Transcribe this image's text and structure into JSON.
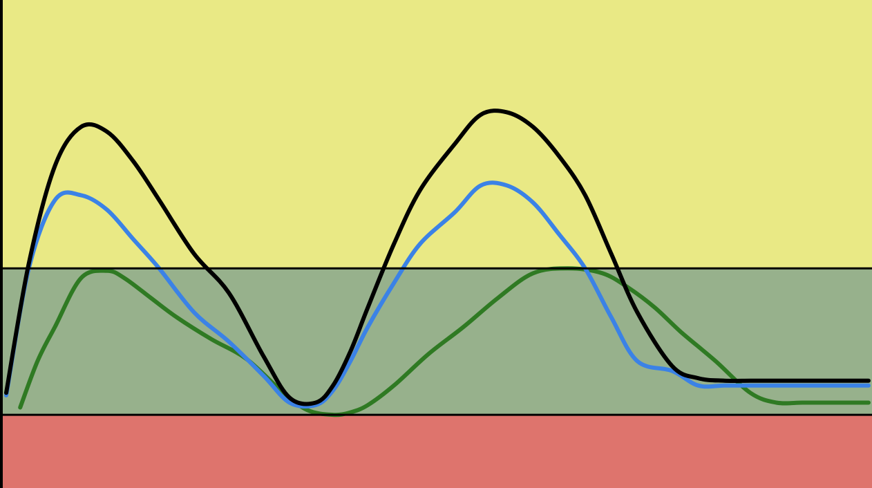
{
  "chart_data": {
    "type": "line",
    "title": "",
    "xlabel": "",
    "ylabel": "",
    "grid": false,
    "legend": "none",
    "xlim": [
      0,
      100
    ],
    "ylim": [
      0,
      100
    ],
    "bands": [
      {
        "name": "upper-band",
        "from": 45,
        "to": 100,
        "color": "#e9e985"
      },
      {
        "name": "middle-band",
        "from": 15,
        "to": 45,
        "color": "#97b18c"
      },
      {
        "name": "lower-band",
        "from": 0,
        "to": 15,
        "color": "#de746d"
      }
    ],
    "thresholds": [
      45,
      15
    ],
    "series": [
      {
        "color": "#000000",
        "x": [
          0.4,
          3,
          6,
          9,
          12,
          15,
          18,
          22,
          26,
          30,
          33,
          36,
          38,
          40,
          42,
          45,
          48,
          52,
          55,
          58,
          61,
          64,
          67,
          70,
          73,
          77,
          80,
          83,
          86,
          89,
          92,
          95,
          97,
          98,
          99,
          99.6
        ],
        "y": [
          19.5,
          46,
          66,
          74,
          73,
          67,
          59,
          48,
          40,
          27,
          18.5,
          17.5,
          21,
          28,
          37,
          50,
          61,
          70.5,
          76.5,
          77,
          74,
          68,
          60,
          48,
          36,
          25,
          22.5,
          22,
          22,
          22,
          22,
          22,
          22,
          22,
          22,
          22
        ]
      },
      {
        "color": "#3b82e6",
        "x": [
          0.4,
          3,
          6,
          9,
          12,
          15,
          18,
          22,
          26,
          30,
          33,
          36,
          38,
          40,
          42,
          45,
          48,
          52,
          55,
          58,
          61,
          64,
          67,
          70,
          73,
          77,
          80,
          83,
          86,
          89,
          92,
          95,
          97,
          98,
          99,
          99.6
        ],
        "y": [
          19,
          45,
          59,
          60,
          57,
          51,
          45,
          36,
          30,
          23,
          17.5,
          17,
          20,
          26,
          33,
          42,
          50,
          56.5,
          62,
          62,
          58.5,
          52,
          45,
          35,
          26,
          24,
          21,
          21,
          21,
          21,
          21,
          21,
          21,
          21,
          21,
          21
        ]
      },
      {
        "color": "#2f7a23",
        "x": [
          2,
          4,
          6,
          9,
          12,
          14,
          17,
          20,
          24,
          28,
          32,
          35,
          38,
          40,
          42,
          45,
          49,
          53,
          57,
          61,
          65,
          69,
          72,
          75,
          78,
          82,
          86,
          89,
          92,
          95,
          97,
          98,
          99,
          99.6
        ],
        "y": [
          16.5,
          26,
          33,
          43,
          44.5,
          43,
          39,
          35,
          30.5,
          26.5,
          20,
          16,
          15,
          15.5,
          17,
          21,
          27.5,
          33,
          39,
          44,
          45,
          44,
          41,
          37,
          32,
          26,
          19.5,
          17.5,
          17.5,
          17.5,
          17.5,
          17.5,
          17.5,
          17.5
        ]
      }
    ]
  }
}
